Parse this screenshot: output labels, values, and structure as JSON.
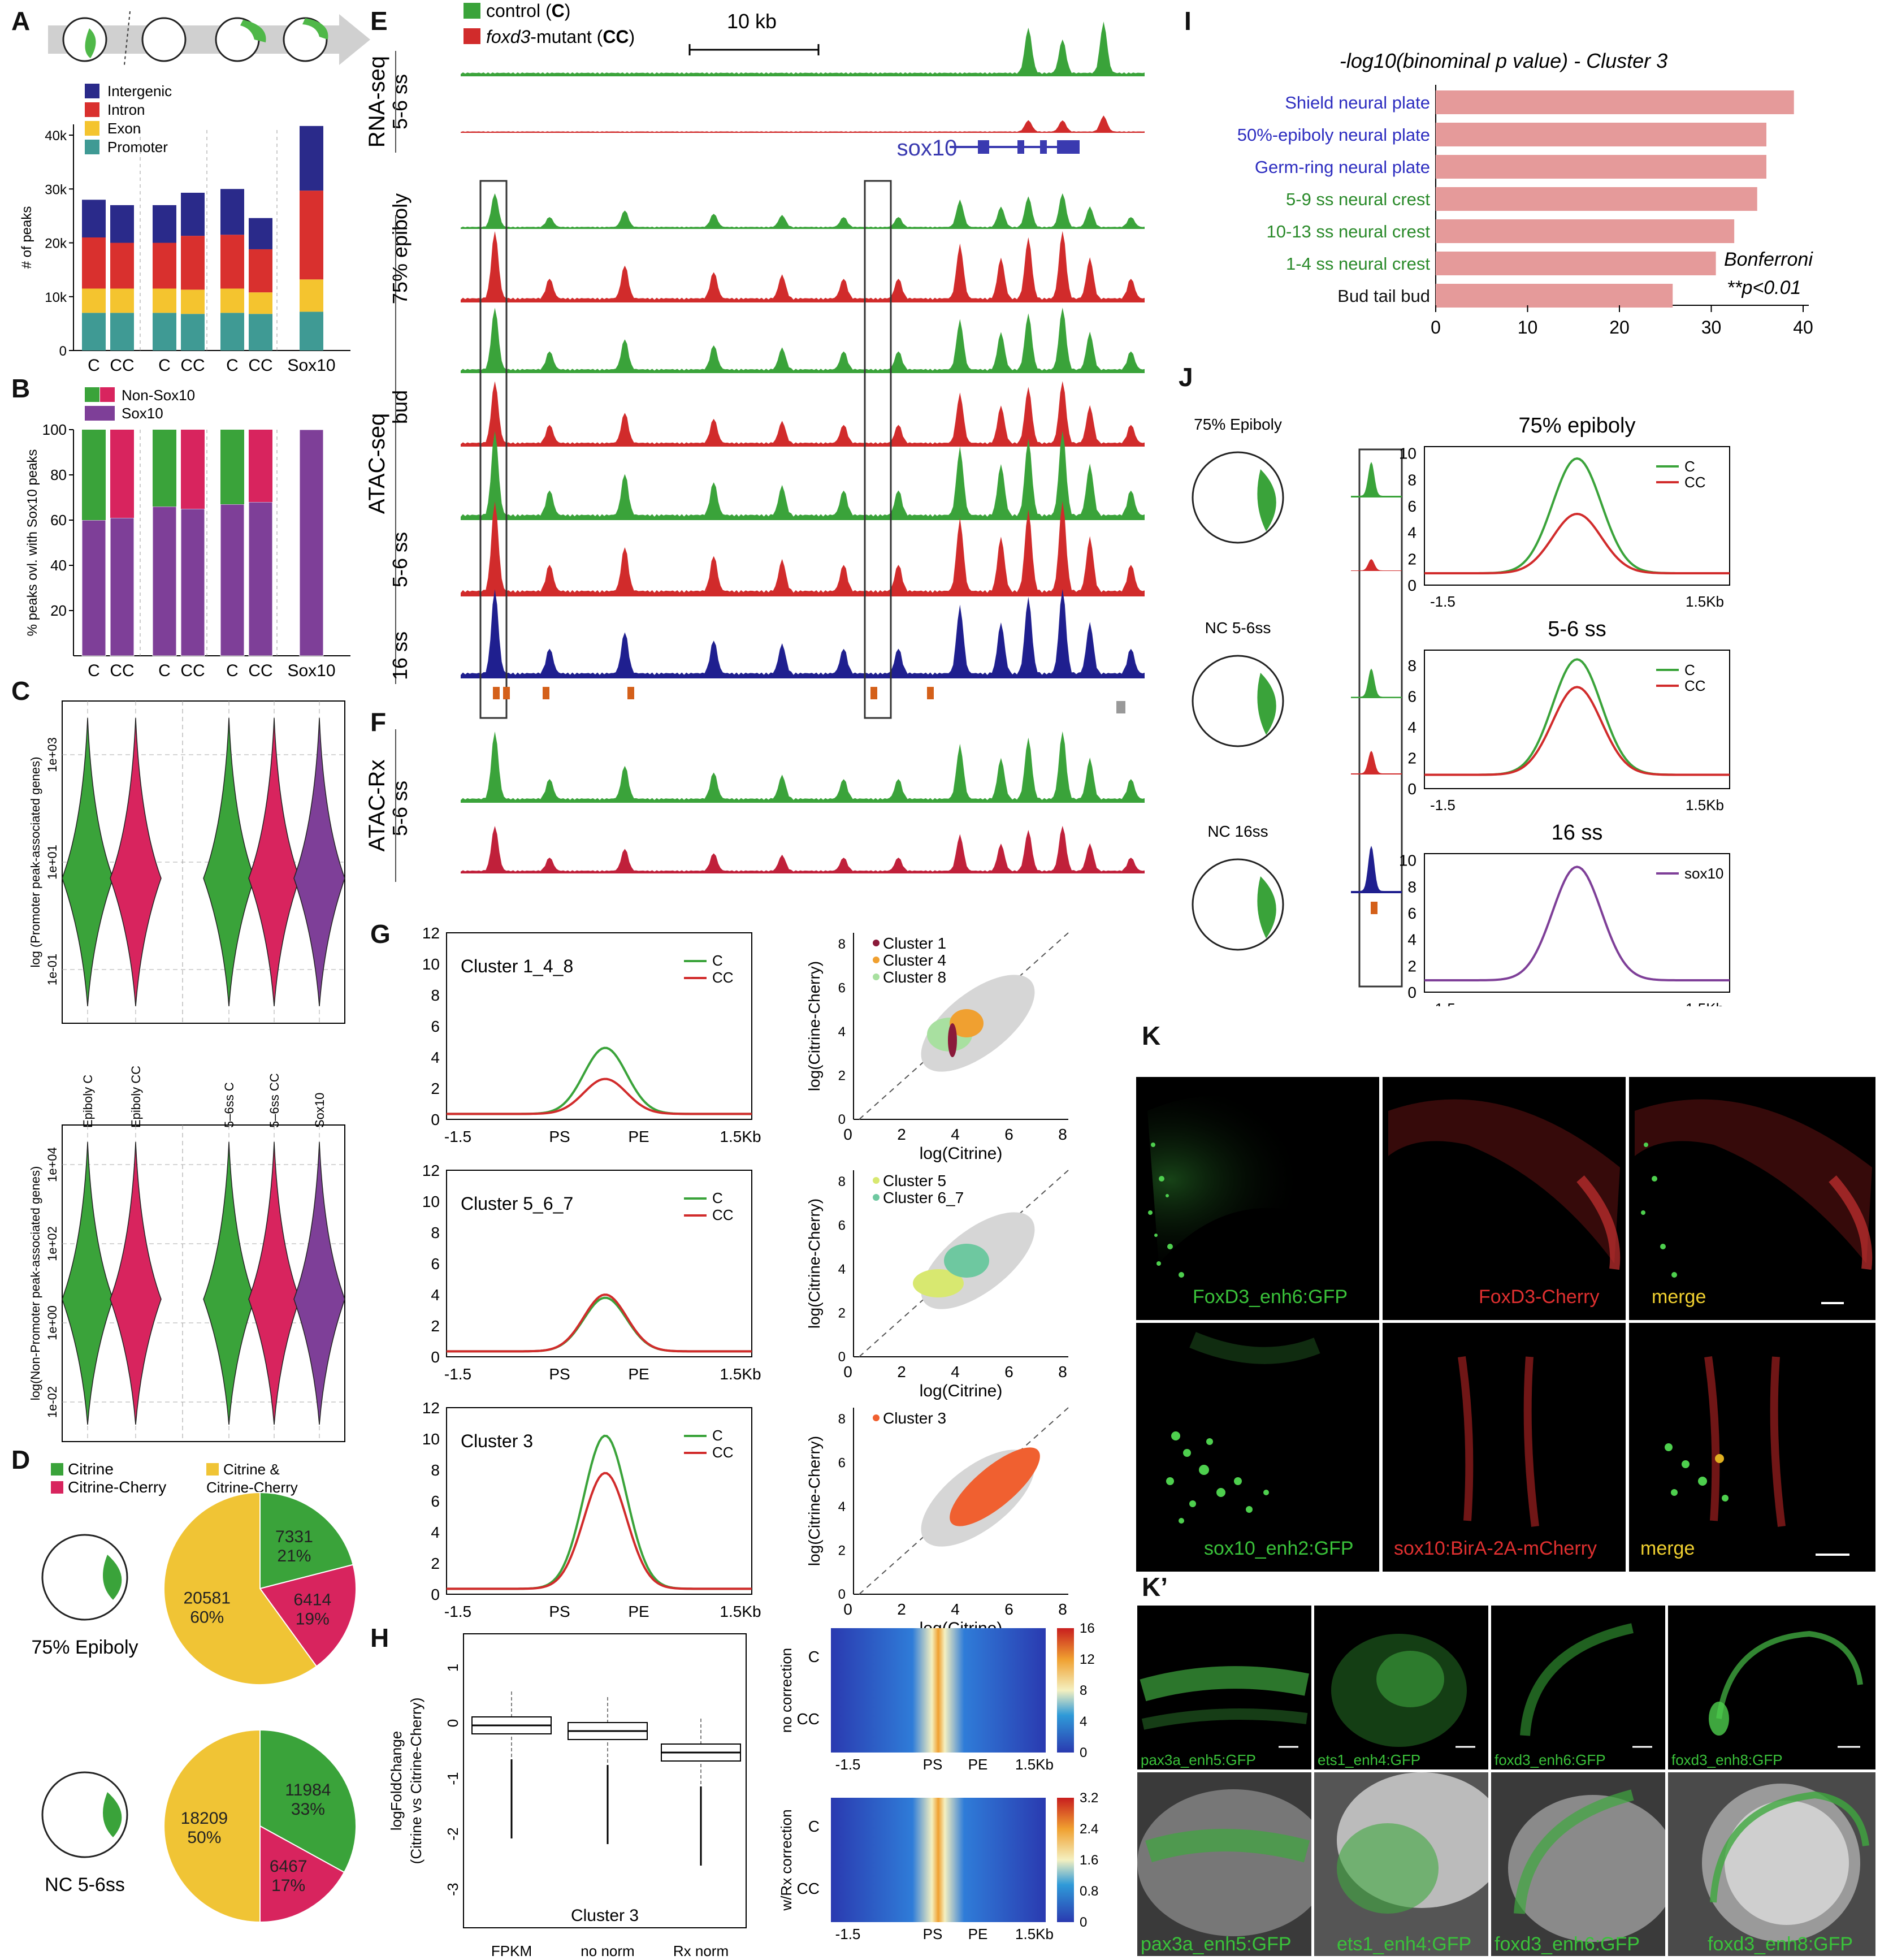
{
  "panels": {
    "A": "A",
    "B": "B",
    "C": "C",
    "D": "D",
    "E": "E",
    "F": "F",
    "G": "G",
    "H": "H",
    "I": "I",
    "J": "J",
    "K": "K",
    "Kp": "K’"
  },
  "colors": {
    "intergenic": "#2a2a8a",
    "intron": "#d9302e",
    "exon": "#f4c42f",
    "promoter": "#3f9a94",
    "green": "#3aa33a",
    "red": "#d12b2b",
    "sox10": "#7e3f98",
    "magenta": "#d8245e",
    "yellow": "#f0c435",
    "navy": "#1f1f8f",
    "pink": "#e59a9a"
  },
  "panelA": {
    "legend": [
      "Intergenic",
      "Intron",
      "Exon",
      "Promoter"
    ],
    "ylabel": "# of peaks",
    "yticks": [
      "0",
      "10k",
      "20k",
      "30k",
      "40k"
    ],
    "xlabels": [
      "C",
      "CC",
      "C",
      "CC",
      "C",
      "CC",
      "Sox10"
    ],
    "chart_data": {
      "type": "bar",
      "categories": [
        "C",
        "CC",
        "C",
        "CC",
        "C",
        "CC",
        "Sox10"
      ],
      "series": [
        {
          "name": "Promoter",
          "values": [
            7000,
            7000,
            7000,
            6800,
            7000,
            6800,
            7200
          ]
        },
        {
          "name": "Exon",
          "values": [
            4500,
            4500,
            4500,
            4500,
            4500,
            4000,
            6000
          ]
        },
        {
          "name": "Intron",
          "values": [
            9500,
            8500,
            8500,
            10000,
            10000,
            8000,
            16500
          ]
        },
        {
          "name": "Intergenic",
          "values": [
            7000,
            7000,
            7000,
            8000,
            8500,
            5800,
            12000
          ]
        }
      ],
      "ylim": [
        0,
        42000
      ]
    }
  },
  "panelB": {
    "legend": [
      "Non-Sox10",
      "Sox10"
    ],
    "ylabel": "% peaks ovl. with Sox10 peaks",
    "yticks": [
      "20",
      "40",
      "60",
      "80",
      "100"
    ],
    "xlabels": [
      "C",
      "CC",
      "C",
      "CC",
      "C",
      "CC",
      "Sox10"
    ],
    "chart_data": {
      "type": "bar",
      "categories": [
        "C",
        "CC",
        "C",
        "CC",
        "C",
        "CC",
        "Sox10"
      ],
      "series": [
        {
          "name": "Sox10",
          "values": [
            60,
            61,
            66,
            65,
            67,
            68,
            100
          ]
        },
        {
          "name": "Non-Sox10",
          "values": [
            40,
            39,
            34,
            35,
            33,
            32,
            0
          ]
        }
      ],
      "ylim": [
        0,
        100
      ]
    }
  },
  "panelC": {
    "ylabel_top": "log (Promoter peak-associated genes)",
    "ylabel_bottom": "log(Non-Promoter peak-associated genes)",
    "yticks_top": [
      "1e-01",
      "1e+01",
      "1e+03"
    ],
    "yticks_bottom": [
      "1e-02",
      "1e+00",
      "1e+02",
      "1e+04"
    ],
    "groups": [
      "Epiboly C",
      "Epiboly CC",
      "5–6ss C",
      "5–6ss CC",
      "Sox10"
    ]
  },
  "panelD": {
    "legend": [
      "Citrine",
      "Citrine-Cherry",
      "Citrine &\nCitrine-Cherry"
    ],
    "pies": [
      {
        "label": "75% Epiboly",
        "slices": [
          {
            "name": "Citrine",
            "count": "7331",
            "pct": "21%",
            "value": 21
          },
          {
            "name": "Citrine-Cherry",
            "count": "6414",
            "pct": "19%",
            "value": 19
          },
          {
            "name": "Citrine & Citrine-Cherry",
            "count": "20581",
            "pct": "60%",
            "value": 60
          }
        ]
      },
      {
        "label": "NC 5-6ss",
        "slices": [
          {
            "name": "Citrine",
            "count": "11984",
            "pct": "33%",
            "value": 33
          },
          {
            "name": "Citrine-Cherry",
            "count": "6467",
            "pct": "17%",
            "value": 17
          },
          {
            "name": "Citrine & Citrine-Cherry",
            "count": "18209",
            "pct": "50%",
            "value": 50
          }
        ]
      }
    ]
  },
  "panelE": {
    "legend": [
      "control (",
      "C",
      ")",
      "foxd3",
      "-mutant (",
      "CC",
      ")"
    ],
    "scale": "10 kb",
    "gene": "sox10",
    "rnaseq": "RNA-seq",
    "atacseq": "ATAC-seq",
    "stage_rna": "5-6 ss",
    "stages": [
      "75% epiboly",
      "bud",
      "5-6 ss",
      "16 ss"
    ]
  },
  "panelF": {
    "label": "ATAC-Rx",
    "stage": "5-6 ss"
  },
  "panelG": {
    "profiles": [
      {
        "title": "Cluster 1_4_8",
        "c_peak": 4.6,
        "cc_peak": 2.6
      },
      {
        "title": "Cluster 5_6_7",
        "c_peak": 3.8,
        "cc_peak": 4.0
      },
      {
        "title": "Cluster 3",
        "c_peak": 10.2,
        "cc_peak": 7.8
      }
    ],
    "legend": [
      "C",
      "CC"
    ],
    "yticks": [
      "0",
      "2",
      "4",
      "6",
      "8",
      "10",
      "12"
    ],
    "xticks": [
      "-1.5",
      "PS",
      "PE",
      "1.5Kb"
    ],
    "scatters": [
      {
        "clusters": [
          "Cluster 1",
          "Cluster 4",
          "Cluster 8"
        ]
      },
      {
        "clusters": [
          "Cluster 5",
          "Cluster 6_7"
        ]
      },
      {
        "clusters": [
          "Cluster 3"
        ]
      }
    ],
    "scatter_xlabel": "log(Citrine)",
    "scatter_ylabel": "log(Citrine-Cherry)",
    "scatter_ticks": [
      "0",
      "2",
      "4",
      "6",
      "8"
    ]
  },
  "panelH": {
    "ylabel1": "logFoldChange",
    "ylabel2": "(Citrine vs Citrine-Cherry)",
    "yticks": [
      "-3",
      "-2",
      "-1",
      "0",
      "1"
    ],
    "xlabels": [
      "FPKM",
      "no norm",
      "Rx norm"
    ],
    "subtitle": "Cluster 3",
    "heat1_label": "no correction",
    "heat2_label": "w/Rx correction",
    "heat1_ticks": [
      "0",
      "4",
      "8",
      "12",
      "16"
    ],
    "heat2_ticks": [
      "0",
      "0.8",
      "1.6",
      "2.4",
      "3.2"
    ],
    "rows": [
      "C",
      "CC"
    ],
    "xticks": [
      "-1.5",
      "PS",
      "PE",
      "1.5Kb"
    ]
  },
  "panelI": {
    "title": "-log10(binominal p value) - Cluster 3",
    "note1": "Bonferroni",
    "note2": "**p<0.01",
    "xticks": [
      "0",
      "10",
      "20",
      "30",
      "40"
    ],
    "chart_data": {
      "type": "bar",
      "categories": [
        "Shield neural plate",
        "50%-epiboly neural plate",
        "Germ-ring neural plate",
        "5-9 ss neural crest",
        "10-13 ss neural crest",
        "1-4 ss neural crest",
        "Bud tail bud"
      ],
      "values": [
        39,
        36,
        36,
        35,
        32.5,
        30.5,
        25.8
      ],
      "xlim": [
        0,
        40
      ]
    }
  },
  "panelJ": {
    "embryos": [
      "75% Epiboly",
      "NC 5-6ss",
      "NC 16ss"
    ],
    "plots": [
      {
        "title": "75% epiboly",
        "legend": [
          "C",
          "CC"
        ],
        "yticks": [
          "0",
          "2",
          "4",
          "6",
          "8",
          "10"
        ],
        "c_peak": 9.6,
        "cc_peak": 5.4
      },
      {
        "title": "5-6 ss",
        "legend": [
          "C",
          "CC"
        ],
        "yticks": [
          "0",
          "2",
          "4",
          "6",
          "8"
        ],
        "c_peak": 8.4,
        "cc_peak": 6.6
      },
      {
        "title": "16 ss",
        "legend": [
          "sox10"
        ],
        "yticks": [
          "0",
          "2",
          "4",
          "6",
          "8",
          "10"
        ],
        "c_peak": 9.5
      }
    ],
    "xticks": [
      "-1.5",
      "1.5Kb"
    ]
  },
  "panelK": {
    "top": [
      "FoxD3_enh6:GFP",
      "FoxD3-Cherry",
      "merge"
    ],
    "bottom": [
      "sox10_enh2:GFP",
      "sox10:BirA-2A-mCherry",
      "merge"
    ]
  },
  "panelKp": {
    "labels": [
      "pax3a_enh5:GFP",
      "ets1_enh4:GFP",
      "foxd3_enh6:GFP",
      "foxd3_enh8:GFP"
    ]
  }
}
